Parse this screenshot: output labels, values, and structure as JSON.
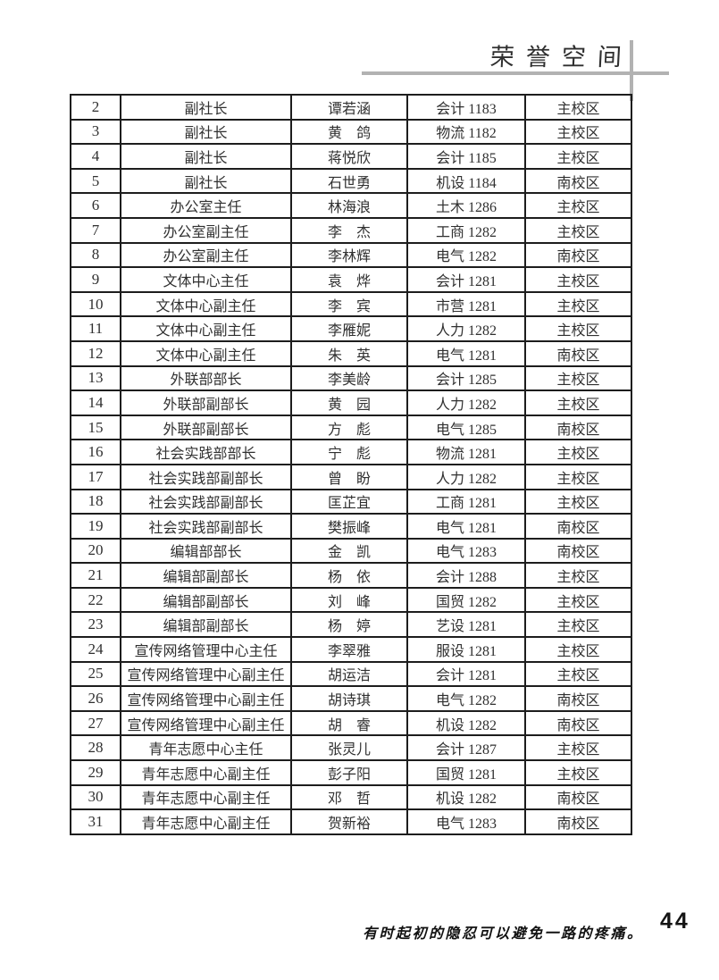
{
  "page": {
    "header_title": "荣誉空间",
    "footer_quote": "有时起初的隐忍可以避免一路的疼痛。",
    "page_number": "44"
  },
  "colors": {
    "table_border": "#1d1d1d",
    "header_rule_gray": "#b2b2b2",
    "text": "#303030"
  },
  "table": {
    "rows": [
      {
        "no": "2",
        "position": "副社长",
        "name": "谭若涵",
        "class": "会计 1183",
        "campus": "主校区"
      },
      {
        "no": "3",
        "position": "副社长",
        "name": "黄　鸽",
        "class": "物流 1182",
        "campus": "主校区"
      },
      {
        "no": "4",
        "position": "副社长",
        "name": "蒋悦欣",
        "class": "会计 1185",
        "campus": "主校区"
      },
      {
        "no": "5",
        "position": "副社长",
        "name": "石世勇",
        "class": "机设 1184",
        "campus": "南校区"
      },
      {
        "no": "6",
        "position": "办公室主任",
        "name": "林海浪",
        "class": "土木 1286",
        "campus": "主校区"
      },
      {
        "no": "7",
        "position": "办公室副主任",
        "name": "李　杰",
        "class": "工商 1282",
        "campus": "主校区"
      },
      {
        "no": "8",
        "position": "办公室副主任",
        "name": "李林辉",
        "class": "电气 1282",
        "campus": "南校区"
      },
      {
        "no": "9",
        "position": "文体中心主任",
        "name": "袁　烨",
        "class": "会计 1281",
        "campus": "主校区"
      },
      {
        "no": "10",
        "position": "文体中心副主任",
        "name": "李　宾",
        "class": "市营 1281",
        "campus": "主校区"
      },
      {
        "no": "11",
        "position": "文体中心副主任",
        "name": "李雁妮",
        "class": "人力 1282",
        "campus": "主校区"
      },
      {
        "no": "12",
        "position": "文体中心副主任",
        "name": "朱　英",
        "class": "电气 1281",
        "campus": "南校区"
      },
      {
        "no": "13",
        "position": "外联部部长",
        "name": "李美龄",
        "class": "会计 1285",
        "campus": "主校区"
      },
      {
        "no": "14",
        "position": "外联部副部长",
        "name": "黄　园",
        "class": "人力 1282",
        "campus": "主校区"
      },
      {
        "no": "15",
        "position": "外联部副部长",
        "name": "方　彪",
        "class": "电气 1285",
        "campus": "南校区"
      },
      {
        "no": "16",
        "position": "社会实践部部长",
        "name": "宁　彪",
        "class": "物流 1281",
        "campus": "主校区"
      },
      {
        "no": "17",
        "position": "社会实践部副部长",
        "name": "曾　盼",
        "class": "人力 1282",
        "campus": "主校区"
      },
      {
        "no": "18",
        "position": "社会实践部副部长",
        "name": "匡芷宜",
        "class": "工商 1281",
        "campus": "主校区"
      },
      {
        "no": "19",
        "position": "社会实践部副部长",
        "name": "樊振峰",
        "class": "电气 1281",
        "campus": "南校区"
      },
      {
        "no": "20",
        "position": "编辑部部长",
        "name": "金　凯",
        "class": "电气 1283",
        "campus": "南校区"
      },
      {
        "no": "21",
        "position": "编辑部副部长",
        "name": "杨　依",
        "class": "会计 1288",
        "campus": "主校区"
      },
      {
        "no": "22",
        "position": "编辑部副部长",
        "name": "刘　峰",
        "class": "国贸 1282",
        "campus": "主校区"
      },
      {
        "no": "23",
        "position": "编辑部副部长",
        "name": "杨　婷",
        "class": "艺设 1281",
        "campus": "主校区"
      },
      {
        "no": "24",
        "position": "宣传网络管理中心主任",
        "name": "李翠雅",
        "class": "服设 1281",
        "campus": "主校区"
      },
      {
        "no": "25",
        "position": "宣传网络管理中心副主任",
        "name": "胡运洁",
        "class": "会计 1281",
        "campus": "主校区"
      },
      {
        "no": "26",
        "position": "宣传网络管理中心副主任",
        "name": "胡诗琪",
        "class": "电气 1282",
        "campus": "南校区"
      },
      {
        "no": "27",
        "position": "宣传网络管理中心副主任",
        "name": "胡　睿",
        "class": "机设 1282",
        "campus": "南校区"
      },
      {
        "no": "28",
        "position": "青年志愿中心主任",
        "name": "张灵儿",
        "class": "会计 1287",
        "campus": "主校区"
      },
      {
        "no": "29",
        "position": "青年志愿中心副主任",
        "name": "彭子阳",
        "class": "国贸 1281",
        "campus": "主校区"
      },
      {
        "no": "30",
        "position": "青年志愿中心副主任",
        "name": "邓　哲",
        "class": "机设 1282",
        "campus": "南校区"
      },
      {
        "no": "31",
        "position": "青年志愿中心副主任",
        "name": "贺新裕",
        "class": "电气 1283",
        "campus": "南校区"
      }
    ]
  }
}
